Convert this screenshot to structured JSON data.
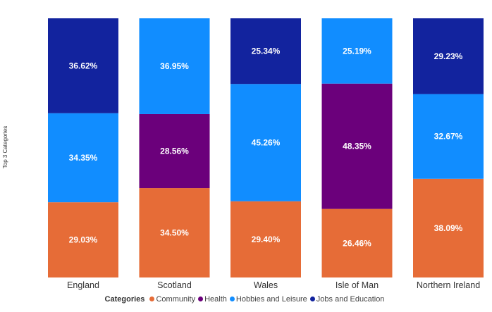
{
  "chart_data": {
    "type": "bar",
    "stacked": "100%",
    "ylabel": "Top 3 Categories",
    "xlabel": "",
    "categories": [
      "England",
      "Scotland",
      "Wales",
      "Isle of Man",
      "Northern Ireland"
    ],
    "series": [
      {
        "name": "Community",
        "color": "#E66C37",
        "values": [
          29.03,
          34.5,
          29.4,
          26.46,
          38.09
        ]
      },
      {
        "name": "Health",
        "color": "#6B007B",
        "values": [
          null,
          28.56,
          null,
          48.35,
          null
        ]
      },
      {
        "name": "Hobbies and Leisure",
        "color": "#118DFF",
        "values": [
          34.35,
          36.95,
          45.26,
          25.19,
          32.67
        ]
      },
      {
        "name": "Jobs and Education",
        "color": "#12239E",
        "values": [
          36.62,
          null,
          25.34,
          null,
          29.23
        ]
      }
    ],
    "ylim": [
      0,
      100
    ],
    "legend": {
      "title": "Categories",
      "position": "bottom"
    },
    "grid": false
  }
}
